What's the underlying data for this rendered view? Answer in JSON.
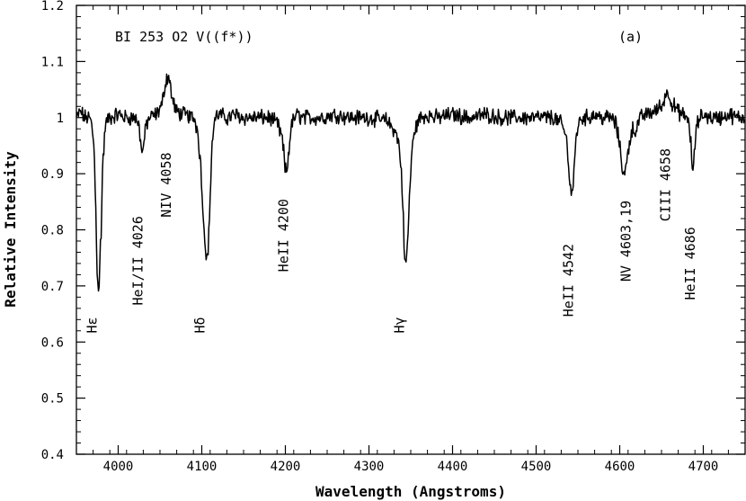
{
  "chart_data": {
    "type": "line",
    "title": "BI 253 O2 V((f*))",
    "panel_label": "(a)",
    "xlabel": "Wavelength (Angstroms)",
    "ylabel": "Relative Intensity",
    "xlim": [
      3950,
      4750
    ],
    "ylim": [
      0.4,
      1.2
    ],
    "x_ticks": [
      4000,
      4100,
      4200,
      4300,
      4400,
      4500,
      4600,
      4700
    ],
    "x_tick_labels": [
      "4000",
      "4100",
      "4200",
      "4300",
      "4400",
      "4500",
      "4600",
      "4700"
    ],
    "y_ticks": [
      0.4,
      0.5,
      0.6,
      0.7,
      0.8,
      0.9,
      1.0,
      1.1,
      1.2
    ],
    "y_tick_labels": [
      "0.4",
      "0.5",
      "0.6",
      "0.7",
      "0.8",
      "0.9",
      "1",
      "1.1",
      "1.2"
    ],
    "grid": false,
    "series": [
      {
        "x": [
          3950,
          3955,
          3960,
          3965,
          3968,
          3971,
          3973,
          3975,
          3977,
          3979,
          3982,
          3985,
          3990,
          4000,
          4010,
          4020,
          4024,
          4027,
          4029,
          4031,
          4034,
          4038,
          4045,
          4052,
          4055,
          4058,
          4060,
          4062,
          4065,
          4070,
          4080,
          4090,
          4095,
          4098,
          4101,
          4103,
          4105,
          4107,
          4109,
          4111,
          4113,
          4116,
          4120,
          4130,
          4140,
          4150,
          4160,
          4170,
          4180,
          4190,
          4195,
          4198,
          4200,
          4202,
          4204,
          4206,
          4208,
          4211,
          4215,
          4220,
          4240,
          4260,
          4280,
          4300,
          4320,
          4330,
          4335,
          4338,
          4340,
          4341,
          4342,
          4343,
          4344,
          4345,
          4347,
          4349,
          4352,
          4356,
          4362,
          4370,
          4380,
          4400,
          4420,
          4440,
          4460,
          4480,
          4500,
          4520,
          4530,
          4535,
          4538,
          4540,
          4542,
          4544,
          4546,
          4548,
          4551,
          4555,
          4560,
          4570,
          4580,
          4590,
          4595,
          4598,
          4601,
          4603,
          4606,
          4608,
          4610,
          4612,
          4615,
          4618,
          4621,
          4625,
          4630,
          4640,
          4650,
          4655,
          4658,
          4660,
          4662,
          4665,
          4670,
          4675,
          4680,
          4683,
          4685,
          4686,
          4687,
          4689,
          4691,
          4693,
          4696,
          4700,
          4710,
          4720,
          4730,
          4740,
          4750
        ],
        "y": [
          1.0,
          1.01,
          1.0,
          1.0,
          0.99,
          0.95,
          0.85,
          0.72,
          0.69,
          0.78,
          0.93,
          0.99,
          1.0,
          1.005,
          1.0,
          1.0,
          0.99,
          0.96,
          0.935,
          0.96,
          0.99,
          1.0,
          1.005,
          1.02,
          1.05,
          1.07,
          1.075,
          1.06,
          1.03,
          1.01,
          1.005,
          1.0,
          0.98,
          0.93,
          0.85,
          0.79,
          0.76,
          0.76,
          0.81,
          0.9,
          0.97,
          1.0,
          1.005,
          1.0,
          1.005,
          1.0,
          1.0,
          1.0,
          1.0,
          0.99,
          0.97,
          0.94,
          0.905,
          0.905,
          0.94,
          0.97,
          0.99,
          1.0,
          1.005,
          1.0,
          1.0,
          1.005,
          1.0,
          1.0,
          0.995,
          0.98,
          0.96,
          0.92,
          0.87,
          0.82,
          0.77,
          0.745,
          0.74,
          0.75,
          0.8,
          0.88,
          0.95,
          0.985,
          1.0,
          1.005,
          1.0,
          1.005,
          1.0,
          1.005,
          1.0,
          1.0,
          1.0,
          1.0,
          0.99,
          0.97,
          0.94,
          0.89,
          0.865,
          0.875,
          0.92,
          0.97,
          0.99,
          1.0,
          1.0,
          1.005,
          1.0,
          1.0,
          0.99,
          0.97,
          0.94,
          0.91,
          0.9,
          0.915,
          0.94,
          0.96,
          0.98,
          0.975,
          0.985,
          1.0,
          1.005,
          1.01,
          1.02,
          1.04,
          1.045,
          1.04,
          1.025,
          1.02,
          1.01,
          1.005,
          1.0,
          0.99,
          0.96,
          0.92,
          0.9,
          0.93,
          0.97,
          0.99,
          1.0,
          1.005,
          1.0,
          1.0,
          1.005,
          1.0,
          1.0
        ]
      }
    ],
    "annotations": [
      {
        "text": "Hε",
        "x": 3974,
        "y": 0.63
      },
      {
        "text": "HeI/II 4026",
        "x": 4029,
        "y": 0.745
      },
      {
        "text": "NIV 4058",
        "x": 4063,
        "y": 0.88
      },
      {
        "text": "Hδ",
        "x": 4103,
        "y": 0.63
      },
      {
        "text": "HeII 4200",
        "x": 4203,
        "y": 0.79
      },
      {
        "text": "Hγ",
        "x": 4342,
        "y": 0.63
      },
      {
        "text": "HeII 4542",
        "x": 4544,
        "y": 0.71
      },
      {
        "text": "NV 4603,19",
        "x": 4613,
        "y": 0.78
      },
      {
        "text": "CIII 4658",
        "x": 4660,
        "y": 0.88
      },
      {
        "text": "HeII 4686",
        "x": 4690,
        "y": 0.74
      }
    ]
  }
}
